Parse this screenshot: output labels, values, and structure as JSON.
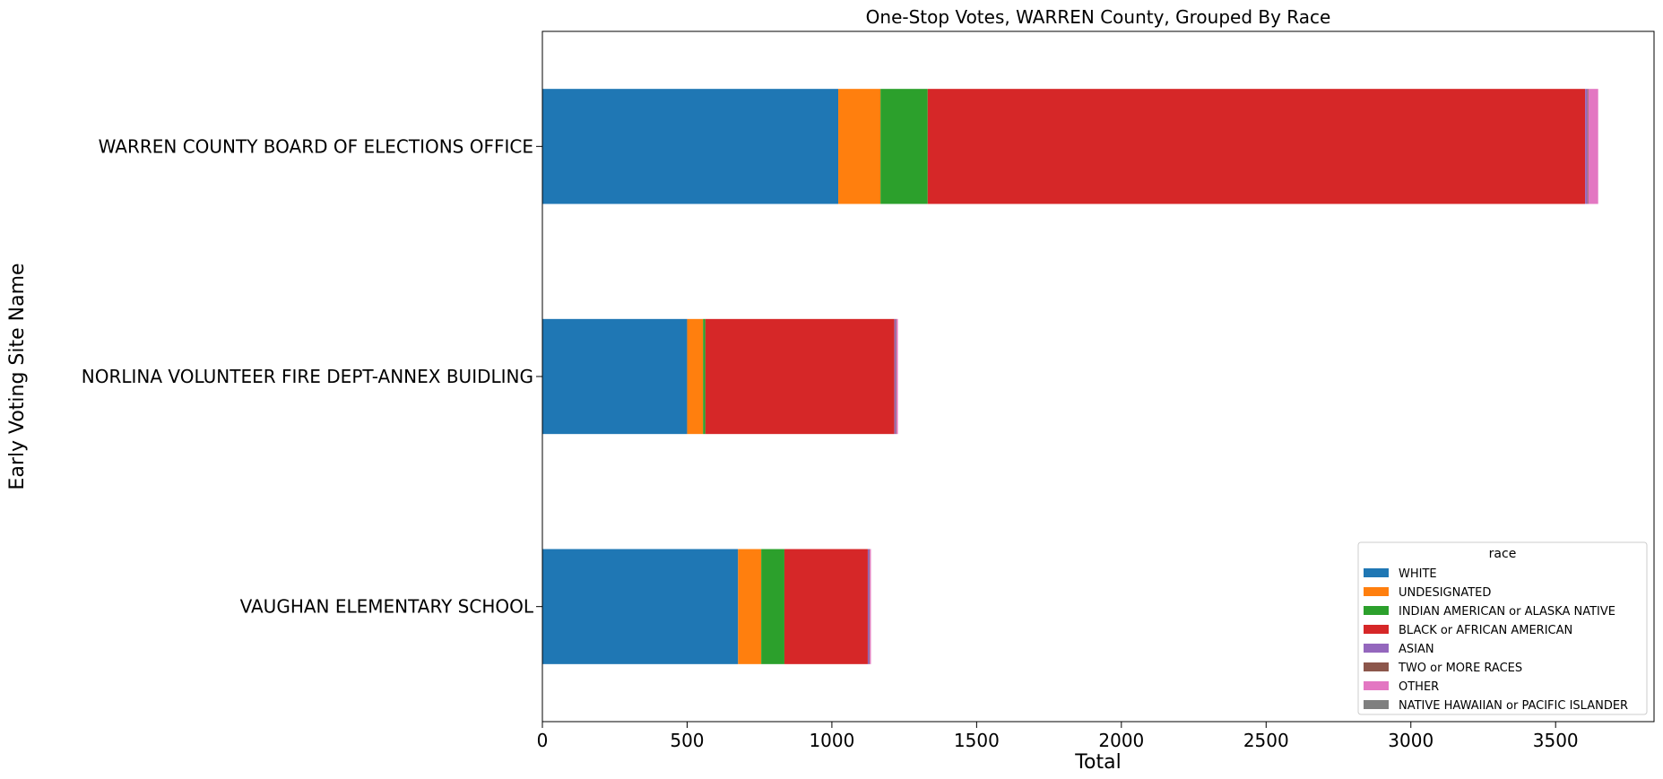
{
  "chart_data": {
    "type": "bar",
    "orientation": "horizontal",
    "stacked": true,
    "title": "One-Stop Votes, WARREN County, Grouped By Race",
    "xlabel": "Total",
    "ylabel": "Early Voting Site Name",
    "xlim": [
      0,
      3840
    ],
    "xticks": [
      0,
      500,
      1000,
      1500,
      2000,
      2500,
      3000,
      3500
    ],
    "grid": false,
    "legend": {
      "title": "race",
      "placement": "lower-right"
    },
    "categories": [
      "WARREN COUNTY BOARD OF ELECTIONS OFFICE",
      "NORLINA VOLUNTEER FIRE DEPT-ANNEX BUIDLING",
      "VAUGHAN ELEMENTARY SCHOOL"
    ],
    "series": [
      {
        "name": "WHITE",
        "color": "#1f77b4",
        "values": [
          1022,
          500,
          676
        ]
      },
      {
        "name": "UNDESIGNATED",
        "color": "#ff7f0e",
        "values": [
          146,
          55,
          80
        ]
      },
      {
        "name": "INDIAN AMERICAN or ALASKA NATIVE",
        "color": "#2ca02c",
        "values": [
          163,
          8,
          80
        ]
      },
      {
        "name": "BLACK or AFRICAN AMERICAN",
        "color": "#d62728",
        "values": [
          2271,
          653,
          288
        ]
      },
      {
        "name": "ASIAN",
        "color": "#9467bd",
        "values": [
          8,
          5,
          5
        ]
      },
      {
        "name": "TWO or MORE RACES",
        "color": "#8c564b",
        "values": [
          3,
          2,
          2
        ]
      },
      {
        "name": "OTHER",
        "color": "#e377c2",
        "values": [
          34,
          5,
          4
        ]
      },
      {
        "name": "NATIVE HAWAIIAN or PACIFIC ISLANDER",
        "color": "#7f7f7f",
        "values": [
          0,
          0,
          0
        ]
      }
    ]
  }
}
